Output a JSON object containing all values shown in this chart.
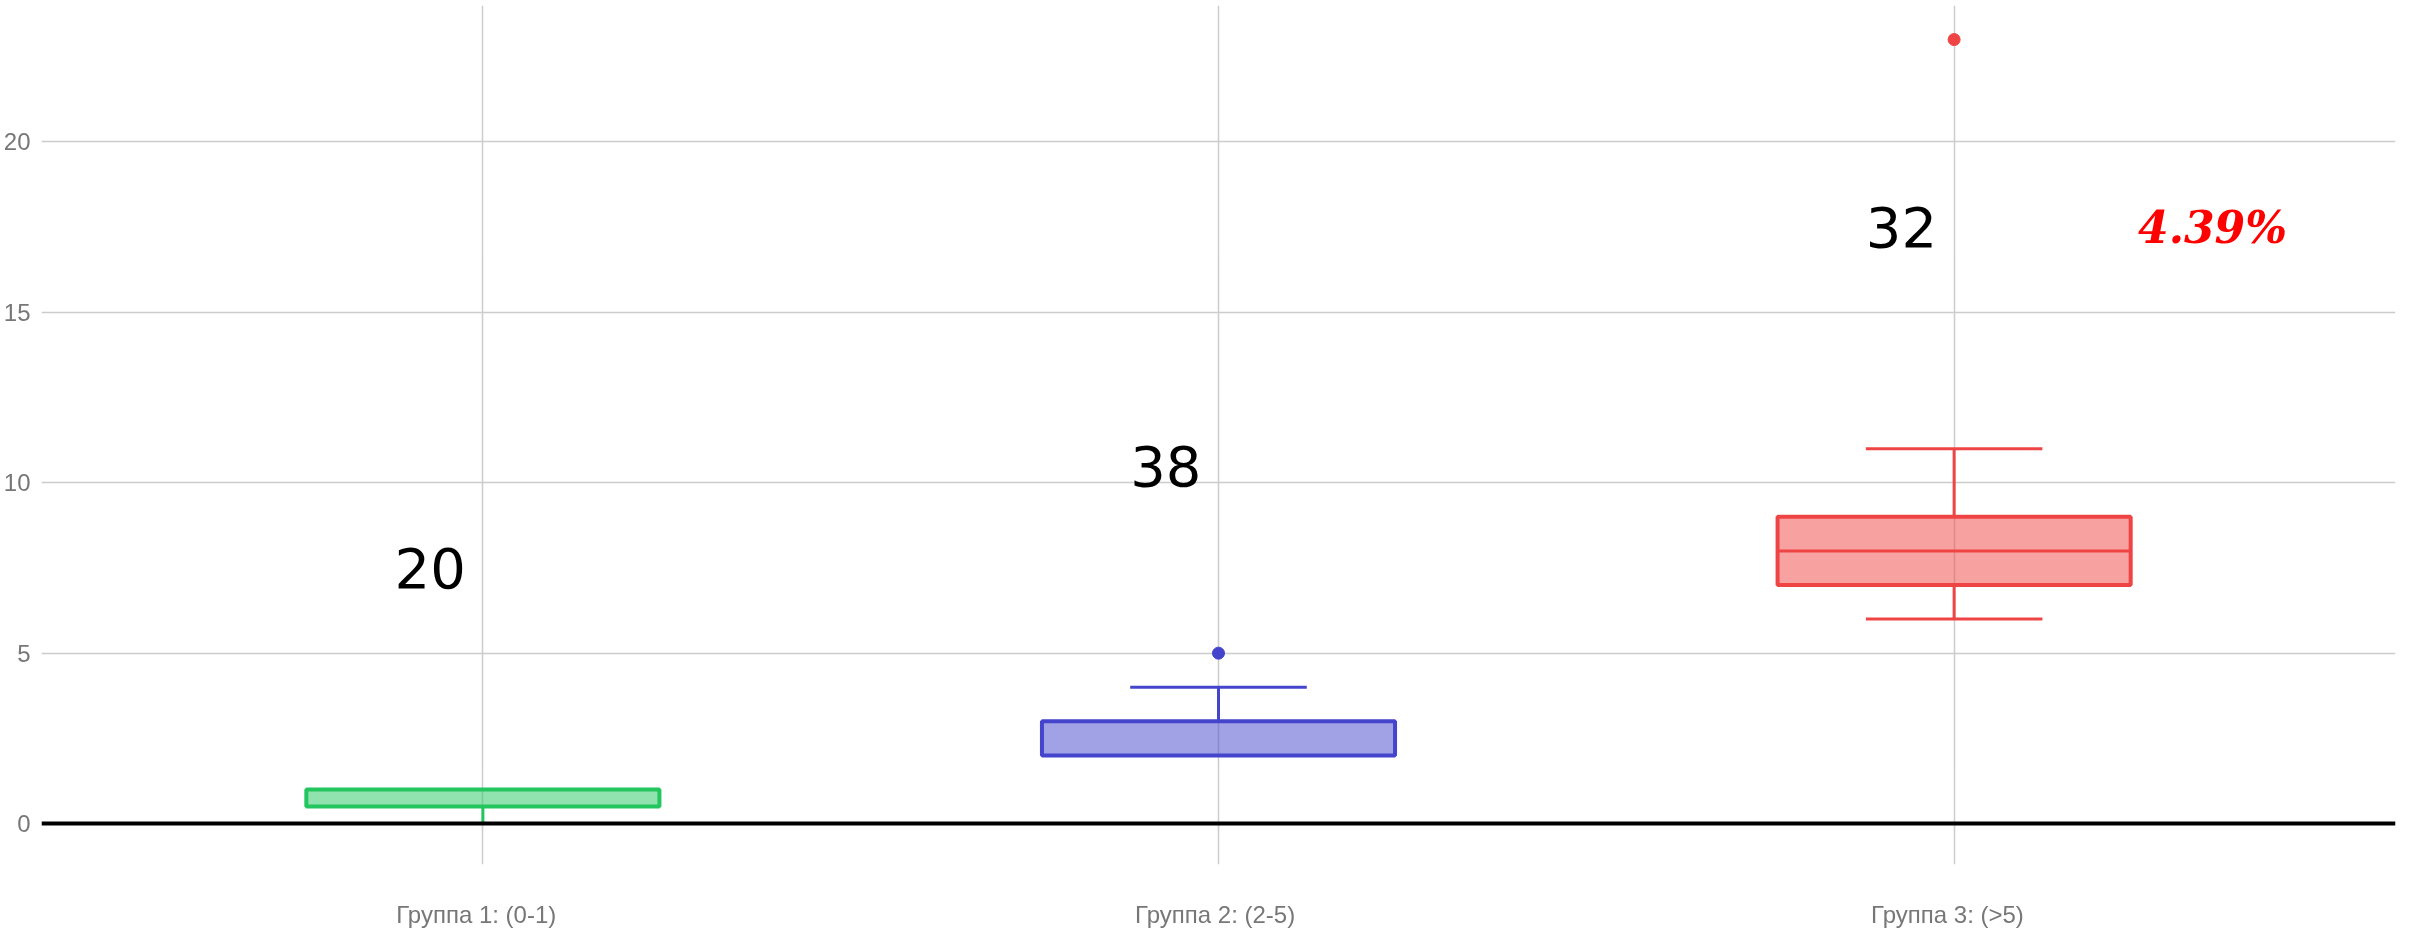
{
  "chart_data": {
    "type": "box",
    "categories": [
      "Группа 1:   (0-1)",
      "Группа 2:  (2-5)",
      "Группа 3:   (>5)"
    ],
    "boxes": [
      {
        "low": 0,
        "q1": 0.5,
        "median": 0.5,
        "q3": 1,
        "high": 1
      },
      {
        "low": 2,
        "q1": 2,
        "median": 2,
        "q3": 3,
        "high": 4,
        "outliers": [
          5
        ]
      },
      {
        "low": 6,
        "q1": 7,
        "median": 8,
        "q3": 9,
        "high": 11,
        "outliers": [
          23
        ]
      }
    ],
    "colors": [
      "#22c55e",
      "#4444cc",
      "#ef4444"
    ],
    "ylim": [
      -1.2,
      24
    ],
    "yticks": [
      0,
      5,
      10,
      15,
      20
    ],
    "grid": true,
    "ref_lines": [
      {
        "axis": "y",
        "value": 0,
        "color": "#000000"
      }
    ],
    "annotations": [
      "20",
      "38",
      "32",
      "4.39%"
    ]
  }
}
